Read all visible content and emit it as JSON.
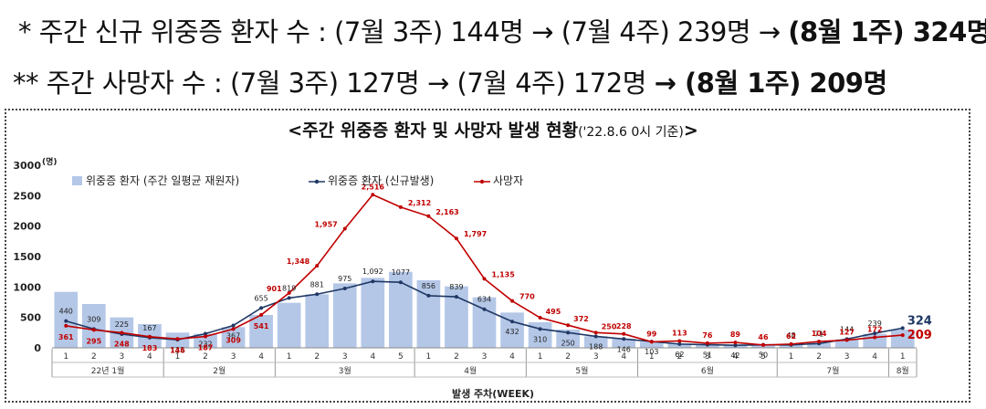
{
  "headline1": {
    "prefix": "* 주간 신규 위중증 환자 수 : (7월 3주) 144명 → (7월 4주) 239명 → ",
    "bold": "(8월 1주) 324명"
  },
  "headline2": {
    "prefix": "** 주간 사망자 수 : (7월 3주) 127명 → (7월 4주) 172명 ",
    "bold": "→ (8월 1주) 209명"
  },
  "chart_data": {
    "type": "bar",
    "title": "<주간 위중증 환자 및 사망자 발생 현황",
    "subtitle": "('22.8.6 0시 기준)",
    "title_end": ">",
    "unit_label": "(명)",
    "xlabel": "발생 주차(WEEK)",
    "ylim": [
      0,
      3000
    ],
    "yticks": [
      "0",
      "500",
      "1000",
      "1500",
      "2000",
      "2500",
      "3000"
    ],
    "grid": false,
    "legend_position": "top-left",
    "week_labels": [
      "1",
      "2",
      "3",
      "4",
      "1",
      "2",
      "3",
      "4",
      "1",
      "2",
      "3",
      "4",
      "5",
      "1",
      "2",
      "3",
      "4",
      "1",
      "2",
      "3",
      "4",
      "1",
      "2",
      "3",
      "4",
      "5",
      "1",
      "2",
      "3",
      "4",
      "1"
    ],
    "month_groups": [
      {
        "label": "22년 1월",
        "count": 4
      },
      {
        "label": "2월",
        "count": 4
      },
      {
        "label": "3월",
        "count": 5
      },
      {
        "label": "4월",
        "count": 4
      },
      {
        "label": "5월",
        "count": 4
      },
      {
        "label": "6월",
        "count": 5
      },
      {
        "label": "7월",
        "count": 4
      },
      {
        "label": "8월",
        "count": 1
      }
    ],
    "series": [
      {
        "name": "위중증 환자 (주간 일평균 재원자)",
        "kind": "bar",
        "color": "#b4c7e7",
        "values": [
          920,
          720,
          500,
          390,
          250,
          230,
          340,
          540,
          740,
          880,
          1060,
          1150,
          1250,
          1110,
          1010,
          830,
          580,
          420,
          300,
          190,
          150,
          100,
          70,
          55,
          50,
          40,
          50,
          80,
          140,
          230,
          300
        ]
      },
      {
        "name": "위중증 환자 (신규발생)",
        "kind": "line",
        "color": "#1f3864",
        "labels": [
          "440",
          "309",
          "225",
          "167",
          "133",
          "232",
          "367",
          "655",
          "819",
          "881",
          "975",
          "1,092",
          "1077",
          "856",
          "839",
          "634",
          "432",
          "310",
          "250",
          "188",
          "146",
          "103",
          "62",
          "51",
          "42",
          "50",
          "48",
          "71",
          "144",
          "239",
          "324"
        ],
        "values": [
          440,
          309,
          225,
          167,
          133,
          232,
          367,
          655,
          819,
          881,
          975,
          1092,
          1077,
          856,
          839,
          634,
          432,
          310,
          250,
          188,
          146,
          103,
          62,
          51,
          42,
          50,
          48,
          71,
          144,
          239,
          324
        ]
      },
      {
        "name": "사망자",
        "kind": "line",
        "color": "#c00000",
        "labels": [
          "361",
          "295",
          "248",
          "183",
          "146",
          "187",
          "309",
          "541",
          "901",
          "1,348",
          "1,957",
          "2,516",
          "2,312",
          "2,163",
          "1,797",
          "1,135",
          "770",
          "495",
          "372",
          "250",
          "228",
          "99",
          "113",
          "76",
          "89",
          "46",
          "62",
          "104",
          "127",
          "172",
          "209"
        ],
        "values": [
          361,
          295,
          248,
          183,
          146,
          187,
          309,
          541,
          901,
          1348,
          1957,
          2516,
          2312,
          2163,
          1797,
          1135,
          770,
          495,
          372,
          250,
          228,
          99,
          113,
          76,
          89,
          46,
          62,
          104,
          127,
          172,
          209
        ]
      }
    ]
  }
}
